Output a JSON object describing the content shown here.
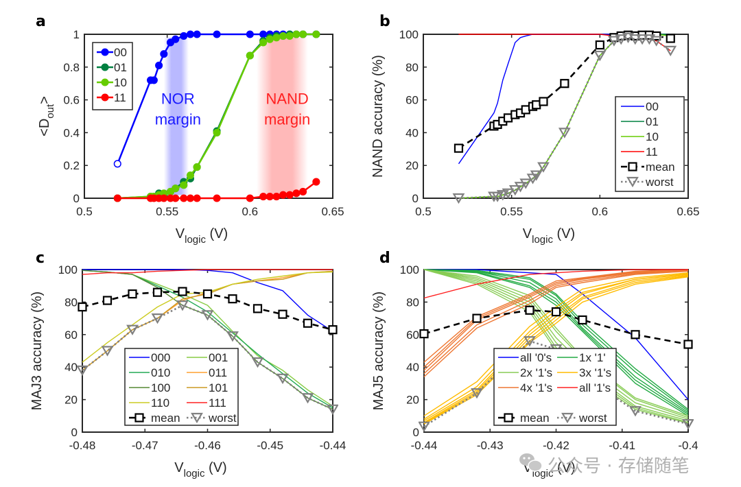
{
  "chart_data": [
    {
      "id": "a",
      "panel_label": "a",
      "type": "line",
      "xlabel": "V",
      "xlabel_sub": "logic",
      "xlabel_unit": " (V)",
      "ylabel": "<D",
      "ylabel_sub": "out",
      "ylabel_tail": ">",
      "xlim": [
        0.5,
        0.65
      ],
      "ylim": [
        0,
        1
      ],
      "xticks": [
        0.5,
        0.55,
        0.6,
        0.65
      ],
      "xtick_labels": [
        "0.5",
        "0.55",
        "0.6",
        "0.65"
      ],
      "yticks": [
        0,
        0.2,
        0.4,
        0.6,
        0.8,
        1
      ],
      "ytick_labels": [
        "0",
        "0.2",
        "0.4",
        "0.6",
        "0.8",
        "1"
      ],
      "legend_position": "top-left",
      "annotations": [
        {
          "text_lines": [
            "NOR",
            "margin"
          ],
          "color": "#1a1aff",
          "x": 0.5565,
          "y": 0.6,
          "band": [
            0.548,
            0.563
          ],
          "band_color": "#8080ff"
        },
        {
          "text_lines": [
            "NAND",
            "margin"
          ],
          "color": "#ff2020",
          "x": 0.6225,
          "y": 0.6,
          "band": [
            0.604,
            0.635
          ],
          "band_color": "#ff8080"
        }
      ],
      "x": [
        0.52,
        0.54,
        0.542,
        0.545,
        0.548,
        0.552,
        0.555,
        0.56,
        0.564,
        0.568,
        0.58,
        0.6,
        0.608,
        0.612,
        0.616,
        0.62,
        0.624,
        0.628,
        0.632,
        0.64
      ],
      "series": [
        {
          "name": "00",
          "color": "#0000ff",
          "marker": "circle",
          "values": [
            0.21,
            0.72,
            0.72,
            0.81,
            0.88,
            0.95,
            0.97,
            0.99,
            1.0,
            1.0,
            1.0,
            1.0,
            1.0,
            1.0,
            1.0,
            1.0,
            1.0,
            1.0,
            1.0,
            1.0
          ]
        },
        {
          "name": "01",
          "color": "#008040",
          "marker": "circle",
          "values": [
            0.0,
            0.01,
            0.01,
            0.03,
            0.02,
            0.04,
            0.06,
            0.1,
            0.12,
            0.19,
            0.41,
            0.87,
            0.96,
            0.98,
            0.99,
            0.99,
            1.0,
            1.0,
            1.0,
            1.0
          ]
        },
        {
          "name": "10",
          "color": "#66cc00",
          "marker": "circle",
          "values": [
            0.0,
            0.01,
            0.01,
            0.02,
            0.03,
            0.04,
            0.06,
            0.08,
            0.14,
            0.19,
            0.4,
            0.87,
            0.95,
            0.97,
            0.98,
            0.99,
            0.99,
            1.0,
            1.0,
            1.0
          ]
        },
        {
          "name": "11",
          "color": "#ff0000",
          "marker": "circle",
          "values": [
            0.0,
            0.0,
            0.0,
            0.0,
            0.0,
            0.0,
            0.0,
            0.0,
            0.0,
            0.0,
            0.0,
            0.0,
            0.01,
            0.01,
            0.01,
            0.02,
            0.02,
            0.03,
            0.04,
            0.1
          ]
        }
      ]
    },
    {
      "id": "b",
      "panel_label": "b",
      "type": "line",
      "xlabel": "V",
      "xlabel_sub": "logic",
      "xlabel_unit": " (V)",
      "ylabel": "NAND accuracy (%)",
      "xlim": [
        0.5,
        0.65
      ],
      "ylim": [
        0,
        100
      ],
      "xticks": [
        0.5,
        0.55,
        0.6,
        0.65
      ],
      "xtick_labels": [
        "0.5",
        "0.55",
        "0.6",
        "0.65"
      ],
      "yticks": [
        0,
        20,
        40,
        60,
        80,
        100
      ],
      "ytick_labels": [
        "0",
        "20",
        "40",
        "60",
        "80",
        "100"
      ],
      "legend_position": "bottom-right",
      "x": [
        0.52,
        0.54,
        0.542,
        0.545,
        0.548,
        0.552,
        0.555,
        0.558,
        0.562,
        0.564,
        0.568,
        0.58,
        0.6,
        0.608,
        0.612,
        0.616,
        0.62,
        0.624,
        0.628,
        0.632,
        0.64
      ],
      "series": [
        {
          "name": "00",
          "color": "#0000ff",
          "style": "solid",
          "values": [
            21,
            52,
            58,
            72,
            82,
            95,
            98,
            99,
            100,
            100,
            100,
            100,
            100,
            100,
            100,
            100,
            100,
            100,
            100,
            100,
            100
          ]
        },
        {
          "name": "01",
          "color": "#008040",
          "style": "solid",
          "values": [
            0,
            1,
            1,
            2,
            3,
            5,
            7,
            9,
            12,
            14,
            19,
            40,
            87,
            96,
            98,
            99,
            99,
            100,
            100,
            100,
            100
          ]
        },
        {
          "name": "10",
          "color": "#66cc00",
          "style": "solid",
          "values": [
            0,
            1,
            1,
            2,
            3,
            5,
            7,
            9,
            12,
            14,
            19,
            40,
            87,
            96,
            98,
            99,
            99,
            100,
            100,
            100,
            99
          ]
        },
        {
          "name": "11",
          "color": "#ff0000",
          "style": "solid",
          "values": [
            100,
            100,
            100,
            100,
            100,
            100,
            100,
            100,
            100,
            100,
            100,
            100,
            100,
            99,
            99,
            99,
            98,
            98,
            97,
            96,
            90
          ]
        },
        {
          "name": "mean",
          "color": "#000000",
          "style": "dashed",
          "marker": "square",
          "values": [
            30.5,
            44,
            45,
            47,
            49,
            51,
            52,
            54,
            56,
            57,
            59,
            70,
            93.5,
            98,
            99,
            99.5,
            99,
            99.5,
            99.5,
            99,
            97.5
          ]
        },
        {
          "name": "worst",
          "color": "#808080",
          "style": "dotted",
          "marker": "triangle-down",
          "values": [
            0,
            1,
            1,
            2,
            3,
            5,
            7,
            9,
            12,
            14,
            19,
            40,
            87,
            96,
            97,
            98,
            97,
            97,
            97,
            96,
            90
          ]
        }
      ]
    },
    {
      "id": "c",
      "panel_label": "c",
      "type": "line",
      "xlabel": "V",
      "xlabel_sub": "logic",
      "xlabel_unit": " (V)",
      "ylabel": "MAJ3 accuracy (%)",
      "xlim": [
        -0.48,
        -0.44
      ],
      "ylim": [
        0,
        100
      ],
      "xticks": [
        -0.48,
        -0.47,
        -0.46,
        -0.45,
        -0.44
      ],
      "xtick_labels": [
        "-0.48",
        "-0.47",
        "-0.46",
        "-0.45",
        "-0.44"
      ],
      "yticks": [
        0,
        20,
        40,
        60,
        80,
        100
      ],
      "ytick_labels": [
        "0",
        "20",
        "40",
        "60",
        "80",
        "100"
      ],
      "legend_position": "bottom-center",
      "legend_columns": 2,
      "x": [
        -0.48,
        -0.476,
        -0.472,
        -0.468,
        -0.464,
        -0.46,
        -0.456,
        -0.452,
        -0.448,
        -0.444,
        -0.44
      ],
      "series": [
        {
          "name": "000",
          "color": "#0000ff",
          "style": "solid",
          "values": [
            100,
            100,
            100,
            100,
            100,
            99.5,
            98,
            92,
            87,
            72,
            62
          ]
        },
        {
          "name": "001",
          "color": "#88cc44",
          "style": "solid",
          "values": [
            99.5,
            98.5,
            97,
            91,
            85,
            78,
            62,
            47,
            38,
            26,
            16
          ]
        },
        {
          "name": "010",
          "color": "#22aa55",
          "style": "solid",
          "values": [
            99.5,
            98.5,
            97,
            90,
            83,
            74,
            61,
            48,
            36,
            24,
            15
          ]
        },
        {
          "name": "011",
          "color": "#ffa030",
          "style": "solid",
          "values": [
            38,
            50,
            63,
            70,
            81,
            86,
            91,
            93,
            95,
            98,
            99
          ]
        },
        {
          "name": "100",
          "color": "#558833",
          "style": "solid",
          "values": [
            99.5,
            98.5,
            97,
            89,
            78,
            72,
            59,
            43,
            33,
            21,
            14
          ]
        },
        {
          "name": "101",
          "color": "#cc9922",
          "style": "solid",
          "values": [
            38,
            50,
            63,
            70,
            82,
            85,
            91,
            93,
            94,
            98,
            99
          ]
        },
        {
          "name": "110",
          "color": "#cccc22",
          "style": "solid",
          "values": [
            43,
            55,
            66,
            77,
            85,
            86,
            91,
            94,
            96,
            98,
            98.5
          ]
        },
        {
          "name": "111",
          "color": "#ff2020",
          "style": "solid",
          "values": [
            97,
            98,
            98,
            99,
            99.5,
            100,
            100,
            100,
            100,
            100,
            100
          ]
        },
        {
          "name": "mean",
          "color": "#000000",
          "style": "dashed",
          "marker": "square",
          "values": [
            77,
            81,
            85,
            86,
            86.5,
            85,
            82,
            76,
            72.5,
            67,
            63
          ]
        },
        {
          "name": "worst",
          "color": "#808080",
          "style": "dotted",
          "marker": "triangle-down",
          "values": [
            38,
            50,
            63,
            70,
            78,
            72,
            59,
            43,
            33,
            21,
            14
          ]
        }
      ]
    },
    {
      "id": "d",
      "panel_label": "d",
      "type": "line",
      "xlabel": "V",
      "xlabel_sub": "logic",
      "xlabel_unit": " (V)",
      "ylabel": "MAJ5 accuracy (%)",
      "xlim": [
        -0.44,
        -0.4
      ],
      "ylim": [
        0,
        100
      ],
      "xticks": [
        -0.44,
        -0.43,
        -0.42,
        -0.41,
        -0.4
      ],
      "xtick_labels": [
        "-0.44",
        "-0.43",
        "-0.42",
        "-0.41",
        "-0.4"
      ],
      "yticks": [
        0,
        20,
        40,
        60,
        80,
        100
      ],
      "ytick_labels": [
        "0",
        "20",
        "40",
        "60",
        "80",
        "100"
      ],
      "legend_position": "bottom-center",
      "legend_columns": 2,
      "x": [
        -0.44,
        -0.432,
        -0.424,
        -0.42,
        -0.416,
        -0.408,
        -0.4
      ],
      "series": [
        {
          "name": "all '0's",
          "color": "#0000ff",
          "style": "solid",
          "values": [
            100,
            100,
            98,
            97,
            85,
            58,
            20
          ]
        },
        {
          "name": "1x '1'",
          "color": "#22aa44",
          "style": "solid",
          "group": [
            [
              100,
              99,
              94,
              84,
              66,
              37,
              13
            ],
            [
              100,
              99,
              92,
              82,
              64,
              34,
              12
            ],
            [
              100,
              98.5,
              90,
              80,
              63,
              32,
              11
            ],
            [
              100,
              98,
              89,
              78,
              62,
              30,
              10
            ],
            [
              100,
              99.5,
              95,
              85,
              68,
              39,
              14
            ]
          ]
        },
        {
          "name": "2x '1's",
          "color": "#88cc55",
          "style": "solid",
          "group": [
            [
              100,
              95,
              82,
              62,
              45,
              20,
              9
            ],
            [
              100,
              94,
              80,
              58,
              42,
              18,
              8
            ],
            [
              100,
              93,
              78,
              55,
              40,
              16,
              7
            ],
            [
              100,
              92,
              76,
              52,
              38,
              15,
              6
            ],
            [
              100,
              91,
              74,
              50,
              36,
              14,
              5.5
            ],
            [
              100,
              96,
              84,
              64,
              46,
              21,
              10
            ]
          ]
        },
        {
          "name": "3x '1's",
          "color": "#ffbb00",
          "style": "solid",
          "group": [
            [
              10,
              31,
              65,
              77,
              88,
              95,
              98
            ],
            [
              8,
              28,
              62,
              75,
              86,
              94,
              97.5
            ],
            [
              7,
              26,
              60,
              73,
              85,
              94,
              97
            ],
            [
              6,
              25,
              58,
              71,
              83,
              93,
              96.5
            ],
            [
              5.5,
              24,
              56,
              69,
              82,
              92,
              96
            ],
            [
              5,
              23,
              55,
              67,
              80,
              91,
              95.5
            ]
          ]
        },
        {
          "name": "4x '1's",
          "color": "#ee7733",
          "style": "solid",
          "group": [
            [
              43,
              71,
              85,
              93,
              95,
              99,
              100
            ],
            [
              40,
              70,
              84,
              92,
              94.5,
              98.5,
              100
            ],
            [
              38,
              69,
              83,
              91,
              94,
              98,
              99.5
            ],
            [
              36,
              66,
              81,
              90,
              93,
              97.5,
              99.5
            ],
            [
              34,
              64,
              79,
              89,
              92,
              97,
              99
            ]
          ]
        },
        {
          "name": "all '1's",
          "color": "#ff2020",
          "style": "solid",
          "values": [
            82.5,
            91,
            97,
            98,
            99,
            100,
            100
          ]
        },
        {
          "name": "mean",
          "color": "#000000",
          "style": "dashed",
          "marker": "square",
          "values": [
            60.5,
            70,
            75,
            74,
            69,
            60,
            54
          ]
        },
        {
          "name": "worst",
          "color": "#808080",
          "style": "dotted",
          "marker": "triangle-down",
          "values": [
            3.5,
            24,
            56,
            51,
            35,
            13,
            5
          ]
        }
      ]
    }
  ],
  "watermark": {
    "text": "公众号 · 存储随笔",
    "icon": "wechat-icon"
  }
}
